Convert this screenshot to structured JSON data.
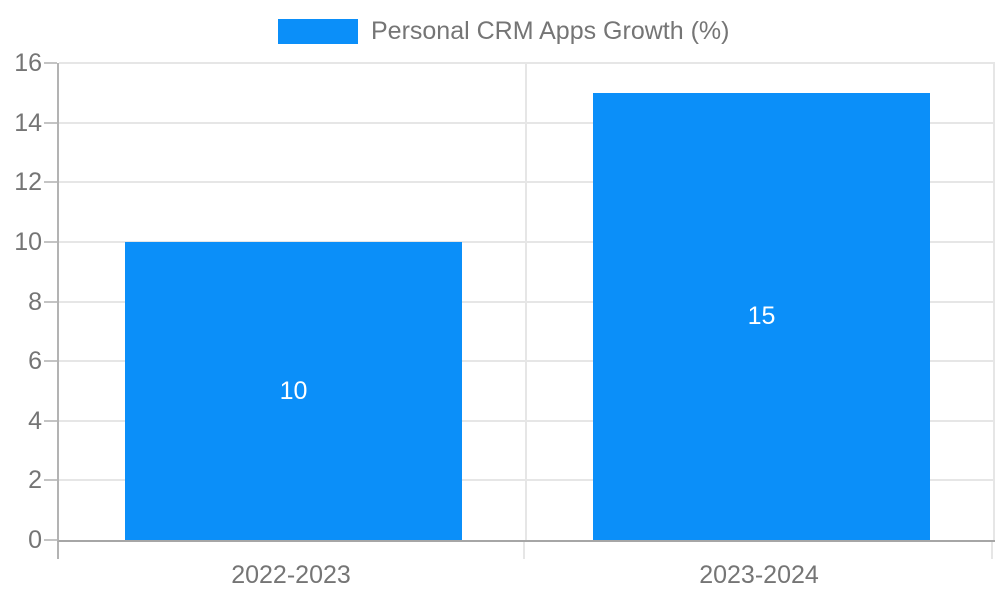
{
  "chart_data": {
    "type": "bar",
    "title": "Personal CRM Apps Growth (%)",
    "categories": [
      "2022-2023",
      "2023-2024"
    ],
    "series": [
      {
        "name": "Personal CRM Apps Growth (%)",
        "values": [
          10,
          15
        ]
      }
    ],
    "value_labels": [
      "10",
      "15"
    ],
    "xlabel": "",
    "ylabel": "",
    "ylim": [
      0,
      16
    ],
    "ytick_step": 2,
    "ytick_labels": [
      "0",
      "2",
      "4",
      "6",
      "8",
      "10",
      "12",
      "14",
      "16"
    ],
    "grid": true,
    "legend_position": "top-center",
    "colors": {
      "bar": "#0b8ff9",
      "value_label": "#ffffff",
      "axis_text": "#757575",
      "gridline": "#e6e6e6",
      "boundary_line": "#e6e6e6",
      "y_axis_line": "#b3b3b3",
      "x_axis_line": "#a6a6a6",
      "y_tick": "#c4c4c4"
    }
  }
}
